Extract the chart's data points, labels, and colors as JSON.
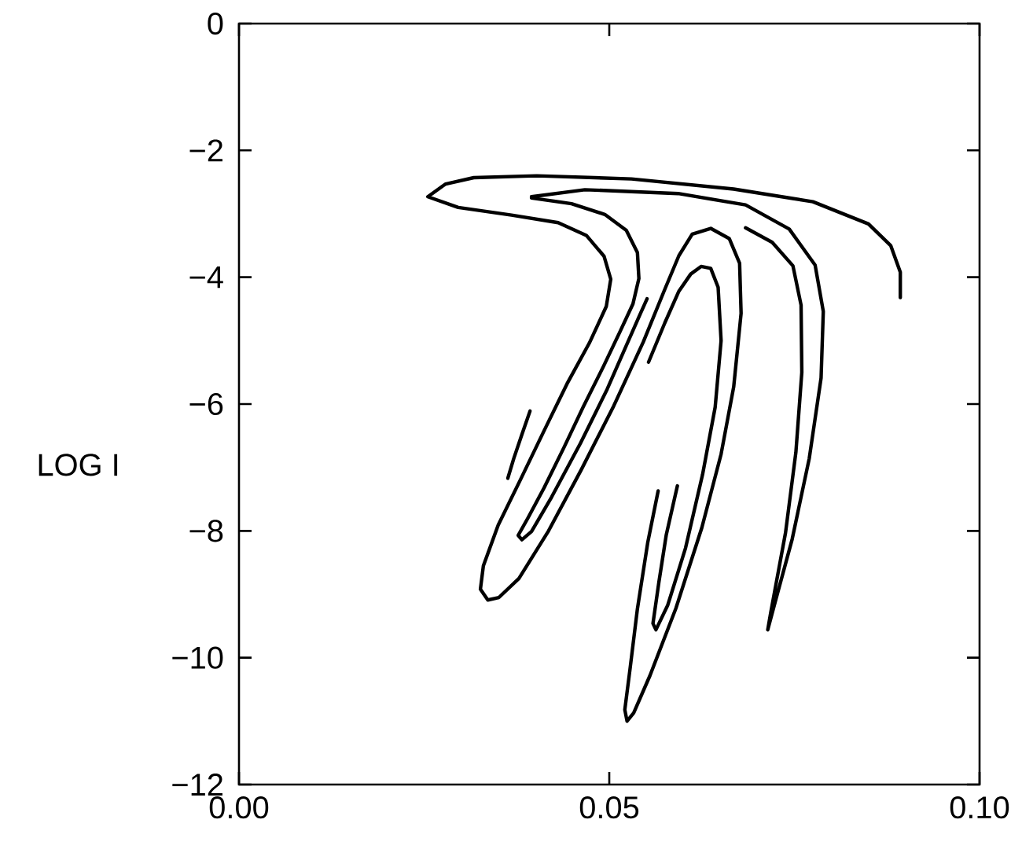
{
  "chart_data": {
    "type": "line",
    "ylabel": "LOG I",
    "xlim": [
      0,
      0.1
    ],
    "xticks": [
      {
        "value": 0,
        "label": "0.00"
      },
      {
        "value": 0.05,
        "label": "0.05"
      },
      {
        "value": 0.1,
        "label": "0.10"
      }
    ],
    "ylim": [
      -12,
      0
    ],
    "yticks": [
      {
        "value": 0,
        "label": "0"
      },
      {
        "value": -2,
        "label": "−2"
      },
      {
        "value": -4,
        "label": "−4"
      },
      {
        "value": -6,
        "label": "−6"
      },
      {
        "value": -8,
        "label": "−8"
      },
      {
        "value": -10,
        "label": "−10"
      },
      {
        "value": -12,
        "label": "−12"
      }
    ],
    "series": [
      {
        "color": "#000000",
        "x": [
          0.0893,
          0.0893,
          0.088,
          0.085,
          0.0775,
          0.0668,
          0.053,
          0.0402,
          0.0317,
          0.0279,
          0.0255,
          0.0296,
          0.0368,
          0.0431,
          0.0469,
          0.0493,
          0.0502,
          0.0496,
          0.0473,
          0.0443,
          0.0412,
          0.0381,
          0.035,
          0.033,
          0.0326,
          0.0336,
          0.0351,
          0.0378,
          0.0418,
          0.0462,
          0.0506,
          0.0546,
          0.0575,
          0.0594,
          0.0612,
          0.0637,
          0.0662,
          0.0676,
          0.0678,
          0.0668,
          0.0651,
          0.0625,
          0.059,
          0.0555,
          0.0533,
          0.0524,
          0.0521,
          0.0528,
          0.0538,
          0.0552,
          0.0566
        ],
        "values": [
          -4.32,
          -3.92,
          -3.5,
          -3.16,
          -2.81,
          -2.61,
          -2.45,
          -2.4,
          -2.43,
          -2.53,
          -2.73,
          -2.9,
          -3.02,
          -3.14,
          -3.34,
          -3.67,
          -4.03,
          -4.46,
          -5.04,
          -5.68,
          -6.42,
          -7.17,
          -7.91,
          -8.55,
          -8.92,
          -9.09,
          -9.05,
          -8.75,
          -8.0,
          -7.04,
          -6.03,
          -5.02,
          -4.19,
          -3.66,
          -3.32,
          -3.23,
          -3.39,
          -3.78,
          -4.57,
          -5.73,
          -6.79,
          -7.95,
          -9.22,
          -10.28,
          -10.87,
          -11.0,
          -10.82,
          -10.18,
          -9.23,
          -8.18,
          -7.37
        ]
      },
      {
        "color": "#000000",
        "x": [
          0.0395,
          0.0467,
          0.0593,
          0.0684,
          0.0743,
          0.0778,
          0.0789,
          0.0786,
          0.077,
          0.0747,
          0.0725,
          0.0714,
          0.0718,
          0.0738,
          0.0752,
          0.076,
          0.0759,
          0.0748,
          0.072,
          0.0684
        ],
        "values": [
          -2.73,
          -2.62,
          -2.68,
          -2.86,
          -3.24,
          -3.81,
          -4.54,
          -5.59,
          -6.86,
          -8.13,
          -9.08,
          -9.56,
          -9.29,
          -8.03,
          -6.76,
          -5.5,
          -4.44,
          -3.82,
          -3.45,
          -3.22
        ]
      },
      {
        "color": "#000000",
        "x": [
          0.0395,
          0.0449,
          0.0494,
          0.0523,
          0.0538,
          0.054,
          0.0532,
          0.0514,
          0.0492,
          0.0465,
          0.0439,
          0.0412,
          0.039,
          0.0377,
          0.0382,
          0.0395,
          0.0422,
          0.0461,
          0.0497,
          0.0521,
          0.0541,
          0.0551
        ],
        "values": [
          -2.75,
          -2.84,
          -3.01,
          -3.26,
          -3.61,
          -4.02,
          -4.42,
          -4.87,
          -5.41,
          -6.04,
          -6.68,
          -7.32,
          -7.8,
          -8.07,
          -8.14,
          -8.01,
          -7.47,
          -6.62,
          -5.77,
          -5.13,
          -4.6,
          -4.34
        ]
      },
      {
        "color": "#000000",
        "x": [
          0.0553,
          0.0575,
          0.0594,
          0.061,
          0.0624,
          0.0637,
          0.0647,
          0.0651,
          0.0643,
          0.0626,
          0.0603,
          0.0579,
          0.0563,
          0.0559,
          0.0567,
          0.0577,
          0.0592
        ],
        "values": [
          -5.34,
          -4.72,
          -4.22,
          -3.95,
          -3.83,
          -3.86,
          -4.16,
          -5.0,
          -6.05,
          -7.11,
          -8.27,
          -9.17,
          -9.56,
          -9.46,
          -8.81,
          -8.06,
          -7.29
        ]
      },
      {
        "color": "#000000",
        "x": [
          0.0393,
          0.0382,
          0.0371,
          0.0363
        ],
        "values": [
          -6.11,
          -6.48,
          -6.86,
          -7.17
        ]
      }
    ]
  }
}
